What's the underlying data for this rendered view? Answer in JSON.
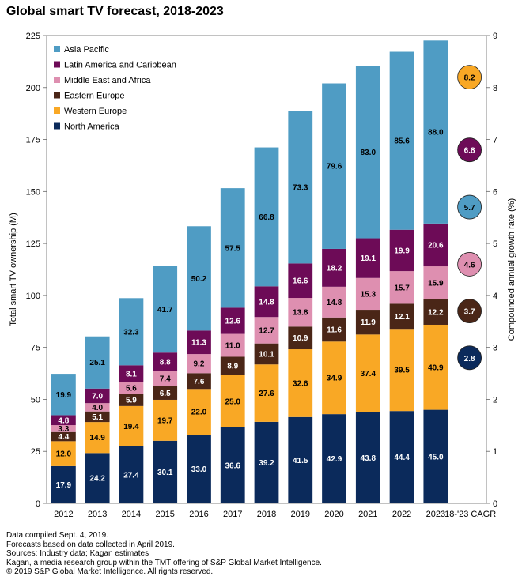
{
  "title": "Global smart TV forecast, 2018-2023",
  "colors": {
    "North America": "#0b2a5b",
    "Western Europe": "#f9a825",
    "Eastern Europe": "#4a2617",
    "Middle East and Africa": "#de8fb0",
    "Latin America and Caribbean": "#6d0b57",
    "Asia Pacific": "#4f9cc4"
  },
  "chart_data": {
    "type": "bar",
    "stacked": true,
    "categories": [
      "2012",
      "2013",
      "2014",
      "2015",
      "2016",
      "2017",
      "2018",
      "2019",
      "2020",
      "2021",
      "2022",
      "2023"
    ],
    "extra_category": "'18-'23 CAGR",
    "ylabel": "Total smart TV ownership (M)",
    "y2label": "Compounded annual growth rate (%)",
    "ylim": [
      0,
      225
    ],
    "yticks": [
      0,
      25,
      50,
      75,
      100,
      125,
      150,
      175,
      200,
      225
    ],
    "y2lim": [
      0,
      9
    ],
    "y2ticks": [
      0,
      1,
      2,
      3,
      4,
      5,
      6,
      7,
      8,
      9
    ],
    "legend_position": "top-left",
    "legend_order": [
      "Asia Pacific",
      "Latin America and Caribbean",
      "Middle East and Africa",
      "Eastern Europe",
      "Western Europe",
      "North America"
    ],
    "series": [
      {
        "name": "North America",
        "values": [
          17.9,
          24.2,
          27.4,
          30.1,
          33.0,
          36.6,
          39.2,
          41.5,
          42.9,
          43.8,
          44.4,
          45.0
        ],
        "labels": [
          "17.9",
          "24.2",
          "27.4",
          "30.1",
          "33.0",
          "36.6",
          "39.2",
          "41.5",
          "42.9",
          "43.8",
          "44.4",
          "45.0"
        ],
        "label_color": "#ffffff"
      },
      {
        "name": "Western Europe",
        "values": [
          12.0,
          14.9,
          19.4,
          19.7,
          22.0,
          25.0,
          27.6,
          32.6,
          34.9,
          37.4,
          39.5,
          40.9
        ],
        "labels": [
          "12.0",
          "14.9",
          "19.4",
          "19.7",
          "22.0",
          "25.0",
          "27.6",
          "32.6",
          "34.9",
          "37.4",
          "39.5",
          "40.9"
        ],
        "label_color": "#000000"
      },
      {
        "name": "Eastern Europe",
        "values": [
          4.4,
          5.1,
          5.9,
          6.5,
          7.6,
          8.9,
          10.1,
          10.9,
          11.6,
          11.9,
          12.1,
          12.2
        ],
        "labels": [
          "4.4",
          "5.1",
          "5.9",
          "6.5",
          "7.6",
          "8.9",
          "10.1",
          "10.9",
          "11.6",
          "11.9",
          "12.1",
          "12.2"
        ],
        "label_color": "#ffffff"
      },
      {
        "name": "Middle East and Africa",
        "values": [
          3.3,
          4.0,
          5.6,
          7.4,
          9.2,
          11.0,
          12.7,
          13.8,
          14.8,
          15.3,
          15.7,
          15.9
        ],
        "labels": [
          "3.3",
          "4.0",
          "5.6",
          "7.4",
          "9.2",
          "11.0",
          "12.7",
          "13.8",
          "14.8",
          "15.3",
          "15.7",
          "15.9"
        ],
        "label_color": "#000000"
      },
      {
        "name": "Latin America and Caribbean",
        "values": [
          4.8,
          7.0,
          8.1,
          8.8,
          11.3,
          12.6,
          14.8,
          16.6,
          18.2,
          19.1,
          19.9,
          20.6
        ],
        "labels": [
          "4.8",
          "7.0",
          "8.1",
          "8.8",
          "11.3",
          "12.6",
          "14.8",
          "16.6",
          "18.2",
          "19.1",
          "19.9",
          "20.6"
        ],
        "label_color": "#ffffff"
      },
      {
        "name": "Asia Pacific",
        "values": [
          19.9,
          25.1,
          32.3,
          41.7,
          50.2,
          57.5,
          66.8,
          73.3,
          79.6,
          83.0,
          85.6,
          88.0
        ],
        "labels": [
          "19.9",
          "25.1",
          "32.3",
          "41.7",
          "50.2",
          "57.5",
          "66.8",
          "73.3",
          "79.6",
          "83.0",
          "85.6",
          "88.0"
        ],
        "label_color": "#000000"
      }
    ],
    "cagr": [
      {
        "series": "Western Europe",
        "value": 8.2,
        "label": "8.2",
        "label_color": "#000000"
      },
      {
        "series": "Latin America and Caribbean",
        "value": 6.8,
        "label": "6.8",
        "label_color": "#ffffff"
      },
      {
        "series": "Asia Pacific",
        "value": 5.7,
        "label": "5.7",
        "label_color": "#000000"
      },
      {
        "series": "Middle East and Africa",
        "value": 4.6,
        "label": "4.6",
        "label_color": "#000000"
      },
      {
        "series": "Eastern Europe",
        "value": 3.7,
        "label": "3.7",
        "label_color": "#ffffff"
      },
      {
        "series": "North America",
        "value": 2.8,
        "label": "2.8",
        "label_color": "#ffffff"
      }
    ]
  },
  "notes": [
    "Data compiled Sept. 4, 2019.",
    "Forecasts based on data collected in April 2019.",
    "Sources: Industry data; Kagan estimates",
    "Kagan, a media research group within the TMT offering of S&P Global Market Intelligence.",
    "© 2019 S&P Global Market Intelligence. All rights reserved."
  ]
}
